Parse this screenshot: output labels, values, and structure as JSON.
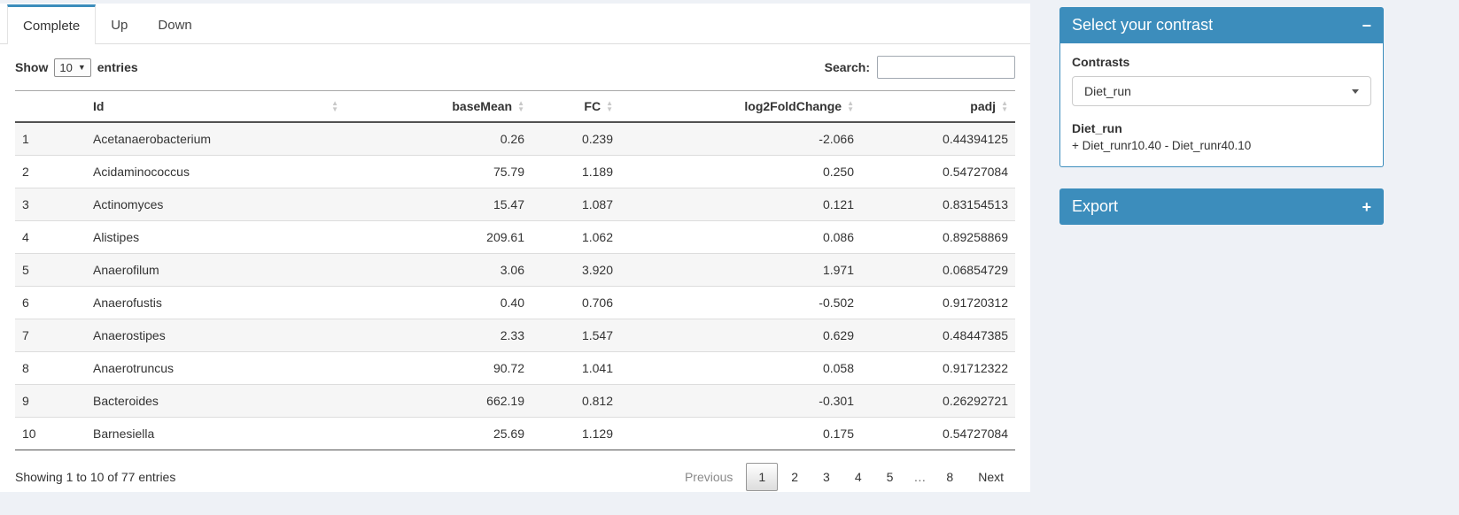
{
  "colors": {
    "primary": "#3c8dbc",
    "page_background": "#eef1f6"
  },
  "tabs": {
    "items": [
      {
        "label": "Complete",
        "active": true
      },
      {
        "label": "Up",
        "active": false
      },
      {
        "label": "Down",
        "active": false
      }
    ]
  },
  "length_control": {
    "show_label": "Show",
    "selected": "10",
    "entries_label": "entries"
  },
  "search": {
    "label": "Search:",
    "value": ""
  },
  "table": {
    "headers": {
      "id": "Id",
      "baseMean": "baseMean",
      "fc": "FC",
      "log2FoldChange": "log2FoldChange",
      "padj": "padj"
    },
    "rows": [
      {
        "index": "1",
        "id": "Acetanaerobacterium",
        "baseMean": "0.26",
        "fc": "0.239",
        "log2FoldChange": "-2.066",
        "padj": "0.44394125"
      },
      {
        "index": "2",
        "id": "Acidaminococcus",
        "baseMean": "75.79",
        "fc": "1.189",
        "log2FoldChange": "0.250",
        "padj": "0.54727084"
      },
      {
        "index": "3",
        "id": "Actinomyces",
        "baseMean": "15.47",
        "fc": "1.087",
        "log2FoldChange": "0.121",
        "padj": "0.83154513"
      },
      {
        "index": "4",
        "id": "Alistipes",
        "baseMean": "209.61",
        "fc": "1.062",
        "log2FoldChange": "0.086",
        "padj": "0.89258869"
      },
      {
        "index": "5",
        "id": "Anaerofilum",
        "baseMean": "3.06",
        "fc": "3.920",
        "log2FoldChange": "1.971",
        "padj": "0.06854729"
      },
      {
        "index": "6",
        "id": "Anaerofustis",
        "baseMean": "0.40",
        "fc": "0.706",
        "log2FoldChange": "-0.502",
        "padj": "0.91720312"
      },
      {
        "index": "7",
        "id": "Anaerostipes",
        "baseMean": "2.33",
        "fc": "1.547",
        "log2FoldChange": "0.629",
        "padj": "0.48447385"
      },
      {
        "index": "8",
        "id": "Anaerotruncus",
        "baseMean": "90.72",
        "fc": "1.041",
        "log2FoldChange": "0.058",
        "padj": "0.91712322"
      },
      {
        "index": "9",
        "id": "Bacteroides",
        "baseMean": "662.19",
        "fc": "0.812",
        "log2FoldChange": "-0.301",
        "padj": "0.26292721"
      },
      {
        "index": "10",
        "id": "Barnesiella",
        "baseMean": "25.69",
        "fc": "1.129",
        "log2FoldChange": "0.175",
        "padj": "0.54727084"
      }
    ]
  },
  "footer": {
    "info": "Showing 1 to 10 of 77 entries",
    "pagination": [
      {
        "label": "Previous",
        "state": "disabled"
      },
      {
        "label": "1",
        "state": "active"
      },
      {
        "label": "2",
        "state": "link"
      },
      {
        "label": "3",
        "state": "link"
      },
      {
        "label": "4",
        "state": "link"
      },
      {
        "label": "5",
        "state": "link"
      },
      {
        "label": "…",
        "state": "ellipsis"
      },
      {
        "label": "8",
        "state": "link"
      },
      {
        "label": "Next",
        "state": "link"
      }
    ]
  },
  "contrast_box": {
    "title": "Select your contrast",
    "collapse_icon": "−",
    "contrasts_label": "Contrasts",
    "selected_contrast": "Diet_run",
    "contrast_name": "Diet_run",
    "contrast_formula": "+ Diet_runr10.40 - Diet_runr40.10"
  },
  "export_box": {
    "title": "Export",
    "expand_icon": "+"
  }
}
